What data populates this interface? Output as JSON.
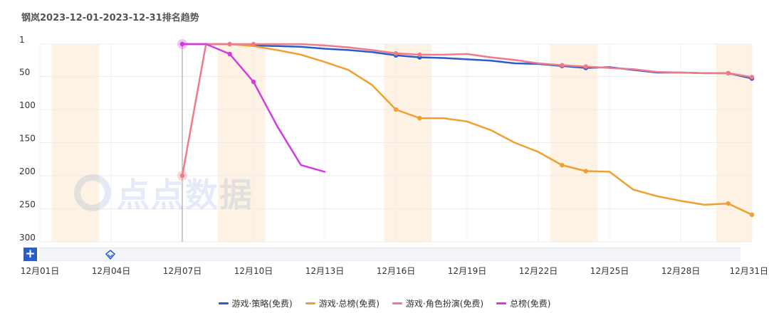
{
  "title": "钢岚2023-12-01-2023-12-31排名趋势",
  "watermark": "点点数据",
  "toolbar": {
    "zoom_label": "+"
  },
  "chart_data": {
    "type": "line",
    "title": "钢岚2023-12-01-2023-12-31排名趋势",
    "y_inverted": true,
    "ylim": [
      1,
      300
    ],
    "yticks": [
      1,
      50,
      100,
      150,
      200,
      250,
      300
    ],
    "xlim": [
      "2023-12-01",
      "2023-12-31"
    ],
    "xtick_labels": [
      "12月01日",
      "12月04日",
      "12月07日",
      "12月10日",
      "12月13日",
      "12月16日",
      "12月19日",
      "12月22日",
      "12月25日",
      "12月28日",
      "12月31日"
    ],
    "weekend_bands": [
      [
        "2023-12-02",
        "2023-12-03"
      ],
      [
        "2023-12-09",
        "2023-12-10"
      ],
      [
        "2023-12-16",
        "2023-12-17"
      ],
      [
        "2023-12-23",
        "2023-12-24"
      ],
      [
        "2023-12-30",
        "2023-12-31"
      ]
    ],
    "hover_date": "2023-12-07",
    "grid": true,
    "legend_position": "bottom-center",
    "series": [
      {
        "name": "游戏·策略(免费)",
        "color": "#2b5dc9",
        "points": [
          [
            "2023-12-07",
            1
          ],
          [
            "2023-12-08",
            1
          ],
          [
            "2023-12-09",
            1
          ],
          [
            "2023-12-10",
            3
          ],
          [
            "2023-12-11",
            4
          ],
          [
            "2023-12-12",
            5
          ],
          [
            "2023-12-13",
            8
          ],
          [
            "2023-12-14",
            10
          ],
          [
            "2023-12-15",
            13
          ],
          [
            "2023-12-16",
            18
          ],
          [
            "2023-12-17",
            21
          ],
          [
            "2023-12-18",
            22
          ],
          [
            "2023-12-19",
            24
          ],
          [
            "2023-12-20",
            26
          ],
          [
            "2023-12-21",
            30
          ],
          [
            "2023-12-22",
            31
          ],
          [
            "2023-12-23",
            34
          ],
          [
            "2023-12-24",
            37
          ],
          [
            "2023-12-25",
            36
          ],
          [
            "2023-12-26",
            40
          ],
          [
            "2023-12-27",
            44
          ],
          [
            "2023-12-28",
            44
          ],
          [
            "2023-12-29",
            45
          ],
          [
            "2023-12-30",
            45
          ],
          [
            "2023-12-31",
            53
          ]
        ],
        "markers": [
          "2023-12-16",
          "2023-12-17",
          "2023-12-23",
          "2023-12-24",
          "2023-12-30",
          "2023-12-31"
        ]
      },
      {
        "name": "游戏·总榜(免费)",
        "color": "#f0a030",
        "points": [
          [
            "2023-12-07",
            1
          ],
          [
            "2023-12-08",
            1
          ],
          [
            "2023-12-09",
            1
          ],
          [
            "2023-12-10",
            4
          ],
          [
            "2023-12-11",
            10
          ],
          [
            "2023-12-12",
            17
          ],
          [
            "2023-12-13",
            28
          ],
          [
            "2023-12-14",
            40
          ],
          [
            "2023-12-15",
            63
          ],
          [
            "2023-12-16",
            100
          ],
          [
            "2023-12-17",
            113
          ],
          [
            "2023-12-18",
            113
          ],
          [
            "2023-12-19",
            118
          ],
          [
            "2023-12-20",
            131
          ],
          [
            "2023-12-21",
            150
          ],
          [
            "2023-12-22",
            164
          ],
          [
            "2023-12-23",
            184
          ],
          [
            "2023-12-24",
            193
          ],
          [
            "2023-12-25",
            194
          ],
          [
            "2023-12-26",
            221
          ],
          [
            "2023-12-27",
            231
          ],
          [
            "2023-12-28",
            238
          ],
          [
            "2023-12-29",
            244
          ],
          [
            "2023-12-30",
            242
          ],
          [
            "2023-12-31",
            259
          ]
        ],
        "markers": [
          "2023-12-16",
          "2023-12-17",
          "2023-12-23",
          "2023-12-24",
          "2023-12-30",
          "2023-12-31"
        ]
      },
      {
        "name": "游戏·角色扮演(免费)",
        "color": "#f07a8c",
        "points": [
          [
            "2023-12-07",
            200
          ],
          [
            "2023-12-08",
            1
          ],
          [
            "2023-12-09",
            1
          ],
          [
            "2023-12-10",
            1
          ],
          [
            "2023-12-11",
            1
          ],
          [
            "2023-12-12",
            1
          ],
          [
            "2023-12-13",
            3
          ],
          [
            "2023-12-14",
            6
          ],
          [
            "2023-12-15",
            10
          ],
          [
            "2023-12-16",
            15
          ],
          [
            "2023-12-17",
            17
          ],
          [
            "2023-12-18",
            17
          ],
          [
            "2023-12-19",
            16
          ],
          [
            "2023-12-20",
            21
          ],
          [
            "2023-12-21",
            25
          ],
          [
            "2023-12-22",
            30
          ],
          [
            "2023-12-23",
            33
          ],
          [
            "2023-12-24",
            35
          ],
          [
            "2023-12-25",
            37
          ],
          [
            "2023-12-26",
            39
          ],
          [
            "2023-12-27",
            43
          ],
          [
            "2023-12-28",
            44
          ],
          [
            "2023-12-29",
            45
          ],
          [
            "2023-12-30",
            45
          ],
          [
            "2023-12-31",
            51
          ]
        ],
        "markers": [
          "2023-12-07",
          "2023-12-09",
          "2023-12-10",
          "2023-12-16",
          "2023-12-17",
          "2023-12-23",
          "2023-12-24",
          "2023-12-30",
          "2023-12-31"
        ]
      },
      {
        "name": "总榜(免费)",
        "color": "#d33be0",
        "points": [
          [
            "2023-12-07",
            1
          ],
          [
            "2023-12-08",
            1
          ],
          [
            "2023-12-09",
            16
          ],
          [
            "2023-12-10",
            58
          ],
          [
            "2023-12-11",
            125
          ],
          [
            "2023-12-12",
            184
          ],
          [
            "2023-12-13",
            194
          ]
        ],
        "markers": [
          "2023-12-07",
          "2023-12-09",
          "2023-12-10"
        ]
      }
    ]
  }
}
